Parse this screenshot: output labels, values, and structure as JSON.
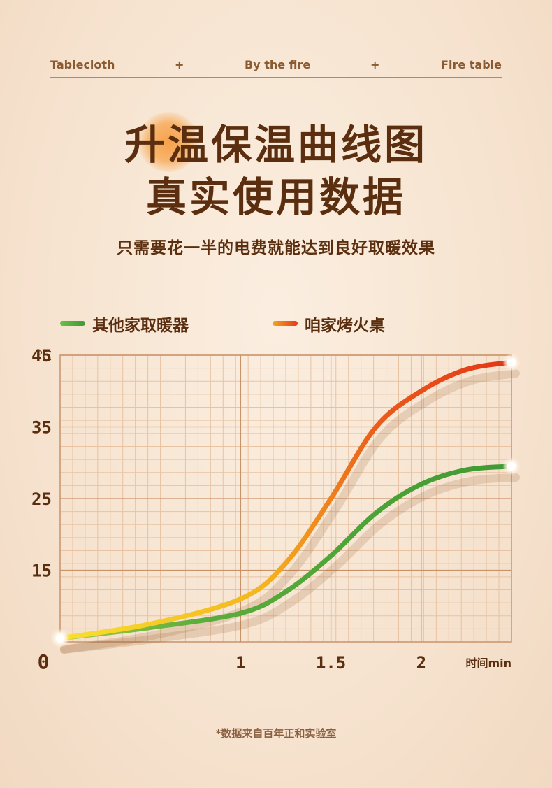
{
  "nav": {
    "left": "Tablecloth",
    "sep1": "+",
    "center": "By the fire",
    "sep2": "+",
    "right": "Fire table"
  },
  "header": {
    "title_line1": "升温保温曲线图",
    "title_line2": "真实使用数据",
    "subtitle": "只需要花一半的电费就能达到良好取暖效果"
  },
  "legend": [
    {
      "label": "其他家取暖器",
      "color": "#4aa03a"
    },
    {
      "label": "咱家烤火桌",
      "color": "#e8461c"
    }
  ],
  "footnote": "*数据来自百年正和实验室",
  "chart_data": {
    "type": "line",
    "ylabel": "℃",
    "xlabel": "时间min",
    "x_ticks": [
      {
        "label": "0",
        "x": 0
      },
      {
        "label": "1",
        "x": 1
      },
      {
        "label": "1.5",
        "x": 1.5
      },
      {
        "label": "2",
        "x": 2
      }
    ],
    "y_ticks": [
      15,
      25,
      35,
      45
    ],
    "xlim": [
      0,
      2.5
    ],
    "ylim": [
      5,
      45
    ],
    "grid": true,
    "series": [
      {
        "name": "其他家取暖器",
        "color": "#4aa03a",
        "points": [
          [
            0,
            5.5
          ],
          [
            0.5,
            7
          ],
          [
            1,
            9
          ],
          [
            1.25,
            12
          ],
          [
            1.5,
            17
          ],
          [
            1.75,
            23
          ],
          [
            2,
            27
          ],
          [
            2.25,
            29
          ],
          [
            2.5,
            29.5
          ]
        ]
      },
      {
        "name": "咱家烤火桌",
        "color": "#e8461c",
        "color_start": "#f3d22a",
        "points": [
          [
            0,
            5.5
          ],
          [
            0.5,
            7.5
          ],
          [
            1,
            11
          ],
          [
            1.25,
            16
          ],
          [
            1.5,
            25
          ],
          [
            1.75,
            35
          ],
          [
            2,
            40
          ],
          [
            2.25,
            43
          ],
          [
            2.5,
            44
          ]
        ]
      }
    ]
  }
}
